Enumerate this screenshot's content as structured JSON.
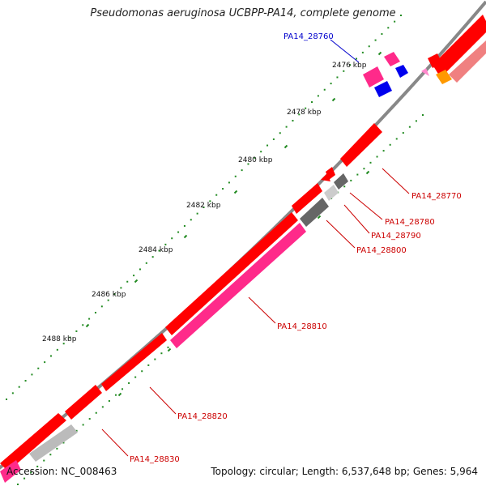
{
  "title": "Pseudomonas aeruginosa UCBPP-PA14, complete genome",
  "footer": {
    "accession": "Accession: NC_008463",
    "summary": "Topology: circular; Length: 6,537,648 bp; Genes: 5,964"
  },
  "ticks": [
    "2476 kbp",
    "2478 kbp",
    "2480 kbp",
    "2482 kbp",
    "2484 kbp",
    "2486 kbp",
    "2488 kbp"
  ],
  "gene_labels": [
    {
      "name": "PA14_28760",
      "color": "#0000cc"
    },
    {
      "name": "PA14_28770",
      "color": "#cc0000"
    },
    {
      "name": "PA14_28780",
      "color": "#cc0000"
    },
    {
      "name": "PA14_28790",
      "color": "#cc0000"
    },
    {
      "name": "PA14_28800",
      "color": "#cc0000"
    },
    {
      "name": "PA14_28810",
      "color": "#cc0000"
    },
    {
      "name": "PA14_28820",
      "color": "#cc0000"
    },
    {
      "name": "PA14_28830",
      "color": "#cc0000"
    }
  ],
  "colors": {
    "backbone": "#888888",
    "cds": "#ff0000",
    "rna": "#ff2a8a",
    "pseudo": "#bbbbbb",
    "dark": "#666666",
    "blue": "#0000ee",
    "orange": "#ff9900",
    "tick_dots": "#228b22"
  }
}
